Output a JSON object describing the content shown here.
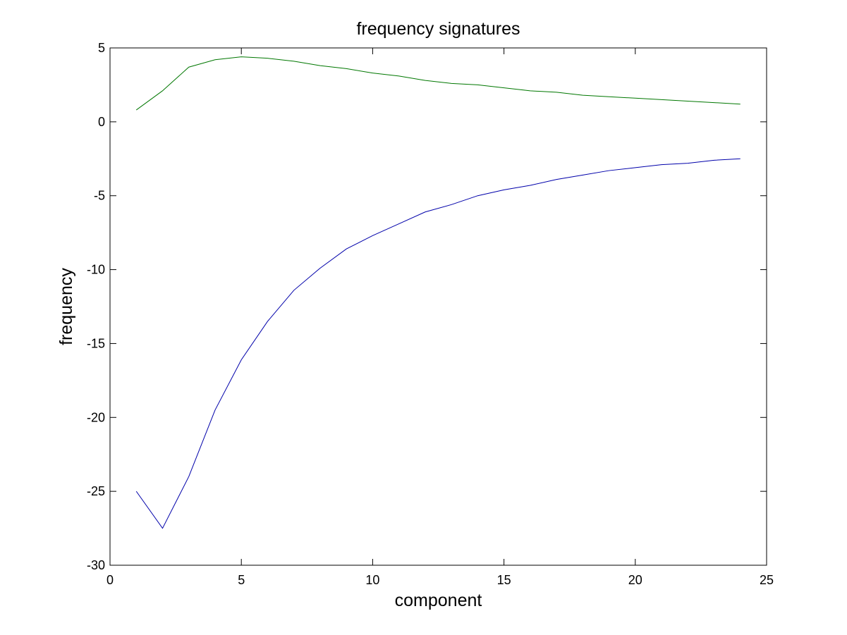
{
  "chart_data": {
    "type": "line",
    "title": "frequency signatures",
    "xlabel": "component",
    "ylabel": "frequency",
    "xlim": [
      0,
      25
    ],
    "ylim": [
      -30,
      5
    ],
    "xticks": [
      0,
      5,
      10,
      15,
      20,
      25
    ],
    "yticks": [
      5,
      0,
      -5,
      -10,
      -15,
      -20,
      -25,
      -30
    ],
    "grid": false,
    "x": [
      1,
      2,
      3,
      4,
      5,
      6,
      7,
      8,
      9,
      10,
      11,
      12,
      13,
      14,
      15,
      16,
      17,
      18,
      19,
      20,
      21,
      22,
      23,
      24
    ],
    "series": [
      {
        "color": "#0000aa",
        "values": [
          -25.0,
          -27.5,
          -24.0,
          -19.5,
          -16.1,
          -13.5,
          -11.4,
          -9.9,
          -8.6,
          -7.7,
          -6.9,
          -6.1,
          -5.6,
          -5.0,
          -4.6,
          -4.3,
          -3.9,
          -3.6,
          -3.3,
          -3.1,
          -2.9,
          -2.8,
          -2.6,
          -2.5
        ]
      },
      {
        "color": "#007700",
        "values": [
          0.8,
          2.1,
          3.7,
          4.2,
          4.4,
          4.3,
          4.1,
          3.8,
          3.6,
          3.3,
          3.1,
          2.8,
          2.6,
          2.5,
          2.3,
          2.1,
          2.0,
          1.8,
          1.7,
          1.6,
          1.5,
          1.4,
          1.3,
          1.2
        ]
      }
    ]
  }
}
